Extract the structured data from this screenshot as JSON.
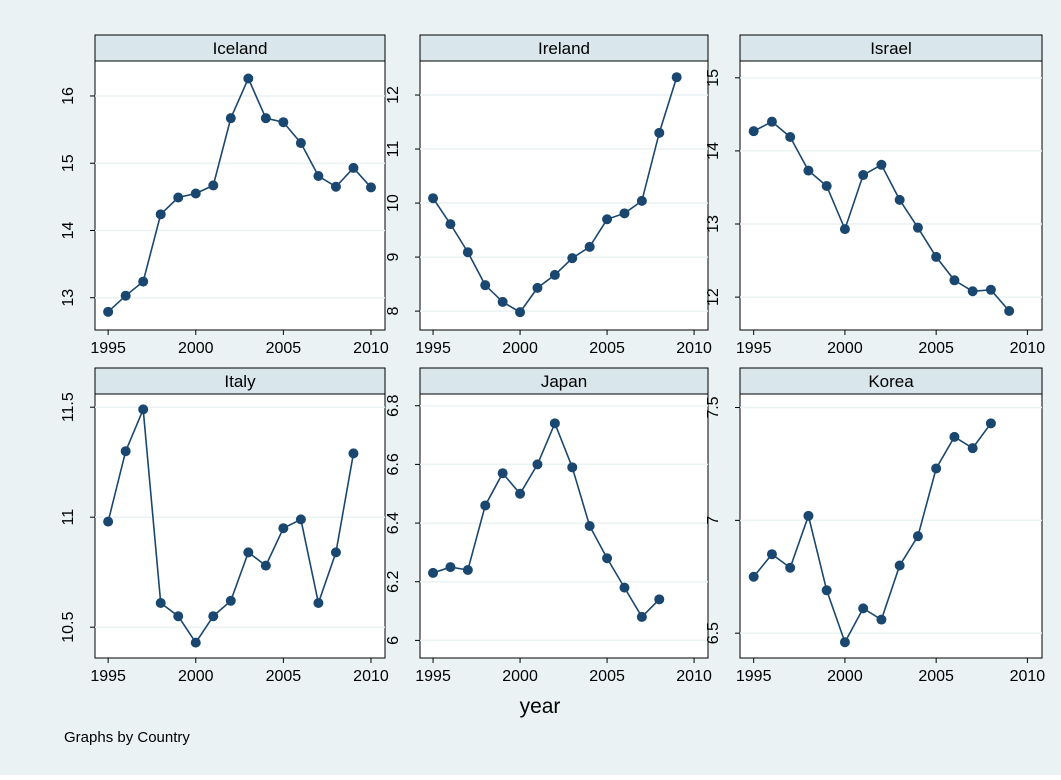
{
  "chart_data": [
    {
      "type": "line",
      "title": "Iceland",
      "x": [
        1995,
        1996,
        1997,
        1998,
        1999,
        2000,
        2001,
        2002,
        2003,
        2004,
        2005,
        2006,
        2007,
        2008,
        2009,
        2010
      ],
      "values": [
        12.79,
        13.03,
        13.24,
        14.24,
        14.49,
        14.55,
        14.67,
        15.67,
        16.26,
        15.67,
        15.61,
        15.3,
        14.81,
        14.65,
        14.93,
        14.64
      ],
      "xlim": [
        1994.25,
        2010.8
      ],
      "xticks": [
        1995,
        2000,
        2005,
        2010
      ],
      "ylim": [
        12.52,
        16.52
      ],
      "yticks": [
        13,
        14,
        15,
        16
      ],
      "color": "#1a476f",
      "grid": true
    },
    {
      "type": "line",
      "title": "Ireland",
      "x": [
        1995,
        1996,
        1997,
        1998,
        1999,
        2000,
        2001,
        2002,
        2003,
        2004,
        2005,
        2006,
        2007,
        2008,
        2009
      ],
      "values": [
        10.09,
        9.61,
        9.09,
        8.48,
        8.17,
        7.98,
        8.43,
        8.67,
        8.98,
        9.19,
        9.7,
        9.81,
        10.04,
        11.3,
        12.33
      ],
      "xlim": [
        1994.25,
        2010.8
      ],
      "xticks": [
        1995,
        2000,
        2005,
        2010
      ],
      "ylim": [
        7.65,
        12.63
      ],
      "yticks": [
        8,
        9,
        10,
        11,
        12
      ],
      "color": "#1a476f",
      "grid": true
    },
    {
      "type": "line",
      "title": "Israel",
      "x": [
        1995,
        1996,
        1997,
        1998,
        1999,
        2000,
        2001,
        2002,
        2003,
        2004,
        2005,
        2006,
        2007,
        2008,
        2009
      ],
      "values": [
        14.27,
        14.4,
        14.19,
        13.73,
        13.52,
        12.93,
        13.67,
        13.81,
        13.33,
        12.95,
        12.55,
        12.23,
        12.08,
        12.1,
        11.81
      ],
      "xlim": [
        1994.25,
        2010.8
      ],
      "xticks": [
        1995,
        2000,
        2005,
        2010
      ],
      "ylim": [
        11.55,
        15.23
      ],
      "yticks": [
        12,
        13,
        14,
        15
      ],
      "color": "#1a476f",
      "grid": true
    },
    {
      "type": "line",
      "title": "Italy",
      "x": [
        1995,
        1996,
        1997,
        1998,
        1999,
        2000,
        2001,
        2002,
        2003,
        2004,
        2005,
        2006,
        2007,
        2008,
        2009
      ],
      "values": [
        10.98,
        11.3,
        11.49,
        10.61,
        10.55,
        10.43,
        10.55,
        10.62,
        10.84,
        10.78,
        10.95,
        10.99,
        10.61,
        10.84,
        11.29
      ],
      "xlim": [
        1994.25,
        2010.8
      ],
      "xticks": [
        1995,
        2000,
        2005,
        2010
      ],
      "ylim": [
        10.36,
        11.56
      ],
      "yticks": [
        10.5,
        11,
        11.5
      ],
      "color": "#1a476f",
      "grid": true
    },
    {
      "type": "line",
      "title": "Japan",
      "x": [
        1995,
        1996,
        1997,
        1998,
        1999,
        2000,
        2001,
        2002,
        2003,
        2004,
        2005,
        2006,
        2007,
        2008
      ],
      "values": [
        6.23,
        6.25,
        6.24,
        6.46,
        6.57,
        6.5,
        6.6,
        6.74,
        6.59,
        6.39,
        6.28,
        6.18,
        6.08,
        6.14
      ],
      "xlim": [
        1994.25,
        2010.8
      ],
      "xticks": [
        1995,
        2000,
        2005,
        2010
      ],
      "ylim": [
        5.94,
        6.84
      ],
      "yticks": [
        6,
        6.2,
        6.4,
        6.6,
        6.8
      ],
      "color": "#1a476f",
      "grid": true
    },
    {
      "type": "line",
      "title": "Korea",
      "x": [
        1995,
        1996,
        1997,
        1998,
        1999,
        2000,
        2001,
        2002,
        2003,
        2004,
        2005,
        2006,
        2007,
        2008
      ],
      "values": [
        6.75,
        6.85,
        6.79,
        7.02,
        6.69,
        6.46,
        6.61,
        6.56,
        6.8,
        6.93,
        7.23,
        7.37,
        7.32,
        7.43
      ],
      "xlim": [
        1994.25,
        2010.8
      ],
      "xticks": [
        1995,
        2000,
        2005,
        2010
      ],
      "ylim": [
        6.39,
        7.56
      ],
      "yticks": [
        6.5,
        7,
        7.5
      ],
      "color": "#1a476f",
      "grid": true
    }
  ],
  "xlabel": "year",
  "note": "Graphs by Country"
}
